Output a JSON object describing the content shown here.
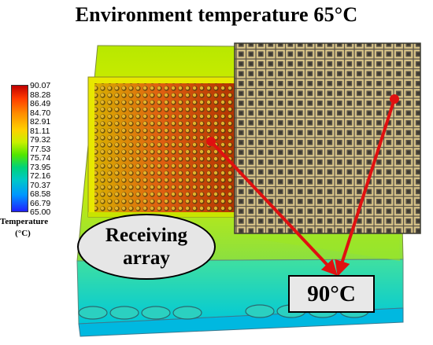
{
  "title": "Environment temperature 65°C",
  "legend": {
    "ticks": [
      "90.07",
      "88.28",
      "86.49",
      "84.70",
      "82.91",
      "81.11",
      "79.32",
      "77.53",
      "75.74",
      "73.95",
      "72.16",
      "70.37",
      "68.58",
      "66.79",
      "65.00"
    ],
    "label_line1": "Temperature",
    "label_line2": "(°C)",
    "max_value": 90.07,
    "min_value": 65.0,
    "colors": [
      "#c00000",
      "#ff3a00",
      "#ff8c00",
      "#ffd000",
      "#c8f000",
      "#52e600",
      "#00d27a",
      "#00c8c8",
      "#0096ff",
      "#2020ff"
    ]
  },
  "callout": {
    "line1": "Receiving",
    "line2": "array"
  },
  "peak_temperature": "90°C",
  "arrow_color": "#e01010"
}
